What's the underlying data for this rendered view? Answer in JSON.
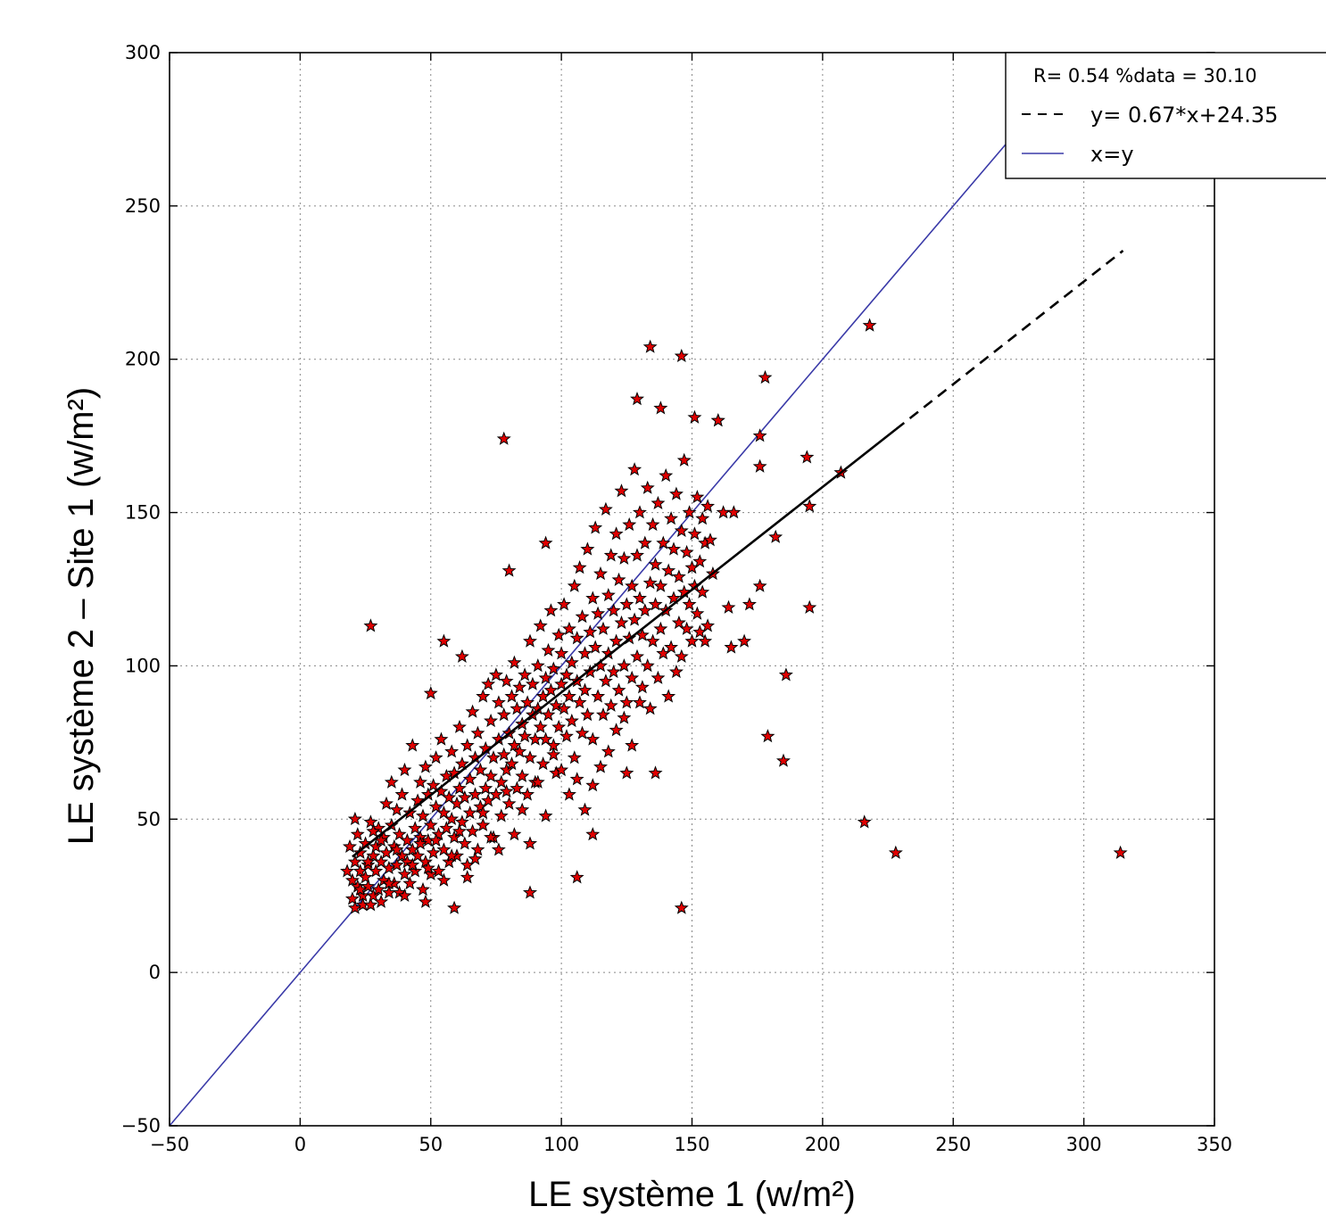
{
  "chart_data": {
    "type": "scatter",
    "xlabel": "LE système 1 (w/m²)",
    "ylabel": "LE système 2 – Site 1 (w/m²)",
    "xlim": [
      -50,
      350
    ],
    "ylim": [
      -50,
      300
    ],
    "xticks": [
      -50,
      0,
      50,
      100,
      150,
      200,
      250,
      300,
      350
    ],
    "yticks": [
      -50,
      0,
      50,
      100,
      150,
      200,
      250,
      300
    ],
    "grid": true,
    "legend": {
      "position": "top-right",
      "header": "R= 0.54  %data = 30.10",
      "entries": [
        {
          "label": "y= 0.67*x+24.35",
          "style": "dashed",
          "color": "#000000"
        },
        {
          "label": "x=y",
          "style": "solid",
          "color": "#3a3aa8"
        }
      ]
    },
    "regression": {
      "slope": 0.67,
      "intercept": 24.35,
      "x_range": [
        20,
        315
      ],
      "solid_until": 228,
      "color": "#000000"
    },
    "identity": {
      "x_range": [
        -50,
        270
      ],
      "color": "#3a3aa8"
    },
    "marker": {
      "shape": "star",
      "fill": "#e00000",
      "stroke": "#000000"
    },
    "points": [
      [
        20,
        30
      ],
      [
        20,
        24
      ],
      [
        21,
        21
      ],
      [
        21,
        36
      ],
      [
        22,
        45
      ],
      [
        22,
        28
      ],
      [
        23,
        33
      ],
      [
        23,
        39
      ],
      [
        24,
        25
      ],
      [
        24,
        22
      ],
      [
        25,
        31
      ],
      [
        25,
        42
      ],
      [
        26,
        35
      ],
      [
        26,
        28
      ],
      [
        27,
        22
      ],
      [
        27,
        49
      ],
      [
        28,
        38
      ],
      [
        28,
        25
      ],
      [
        29,
        33
      ],
      [
        29,
        41
      ],
      [
        30,
        27
      ],
      [
        30,
        47
      ],
      [
        31,
        36
      ],
      [
        31,
        23
      ],
      [
        32,
        30
      ],
      [
        32,
        44
      ],
      [
        33,
        39
      ],
      [
        33,
        55
      ],
      [
        34,
        26
      ],
      [
        34,
        34
      ],
      [
        35,
        48
      ],
      [
        35,
        62
      ],
      [
        36,
        29
      ],
      [
        36,
        41
      ],
      [
        37,
        35
      ],
      [
        37,
        53
      ],
      [
        38,
        26
      ],
      [
        38,
        45
      ],
      [
        39,
        38
      ],
      [
        39,
        58
      ],
      [
        40,
        32
      ],
      [
        40,
        66
      ],
      [
        41,
        43
      ],
      [
        41,
        36
      ],
      [
        42,
        29
      ],
      [
        42,
        52
      ],
      [
        43,
        40
      ],
      [
        43,
        74
      ],
      [
        44,
        33
      ],
      [
        44,
        47
      ],
      [
        45,
        56
      ],
      [
        45,
        38
      ],
      [
        46,
        44
      ],
      [
        46,
        62
      ],
      [
        47,
        27
      ],
      [
        47,
        51
      ],
      [
        48,
        36
      ],
      [
        48,
        67
      ],
      [
        49,
        43
      ],
      [
        49,
        58
      ],
      [
        50,
        32
      ],
      [
        50,
        48
      ],
      [
        51,
        61
      ],
      [
        51,
        39
      ],
      [
        52,
        54
      ],
      [
        52,
        70
      ],
      [
        53,
        45
      ],
      [
        53,
        33
      ],
      [
        54,
        59
      ],
      [
        54,
        76
      ],
      [
        55,
        40
      ],
      [
        55,
        52
      ],
      [
        56,
        64
      ],
      [
        56,
        47
      ],
      [
        57,
        36
      ],
      [
        57,
        57
      ],
      [
        58,
        72
      ],
      [
        58,
        50
      ],
      [
        59,
        44
      ],
      [
        59,
        65
      ],
      [
        60,
        55
      ],
      [
        60,
        38
      ],
      [
        61,
        80
      ],
      [
        61,
        60
      ],
      [
        62,
        49
      ],
      [
        62,
        68
      ],
      [
        63,
        42
      ],
      [
        63,
        57
      ],
      [
        64,
        74
      ],
      [
        64,
        35
      ],
      [
        65,
        63
      ],
      [
        65,
        52
      ],
      [
        66,
        85
      ],
      [
        66,
        46
      ],
      [
        67,
        70
      ],
      [
        67,
        58
      ],
      [
        68,
        40
      ],
      [
        68,
        78
      ],
      [
        69,
        54
      ],
      [
        69,
        66
      ],
      [
        70,
        90
      ],
      [
        70,
        48
      ],
      [
        71,
        60
      ],
      [
        71,
        73
      ],
      [
        72,
        56
      ],
      [
        72,
        94
      ],
      [
        73,
        64
      ],
      [
        73,
        82
      ],
      [
        74,
        44
      ],
      [
        74,
        70
      ],
      [
        75,
        97
      ],
      [
        75,
        58
      ],
      [
        76,
        76
      ],
      [
        76,
        88
      ],
      [
        77,
        62
      ],
      [
        77,
        51
      ],
      [
        78,
        84
      ],
      [
        78,
        71
      ],
      [
        79,
        95
      ],
      [
        79,
        66
      ],
      [
        80,
        78
      ],
      [
        80,
        55
      ],
      [
        81,
        90
      ],
      [
        81,
        68
      ],
      [
        82,
        101
      ],
      [
        82,
        74
      ],
      [
        83,
        60
      ],
      [
        83,
        86
      ],
      [
        84,
        93
      ],
      [
        84,
        72
      ],
      [
        85,
        81
      ],
      [
        85,
        64
      ],
      [
        86,
        97
      ],
      [
        86,
        77
      ],
      [
        87,
        88
      ],
      [
        87,
        58
      ],
      [
        88,
        108
      ],
      [
        88,
        70
      ],
      [
        89,
        84
      ],
      [
        89,
        94
      ],
      [
        90,
        76
      ],
      [
        90,
        62
      ],
      [
        91,
        100
      ],
      [
        91,
        86
      ],
      [
        92,
        80
      ],
      [
        92,
        113
      ],
      [
        93,
        68
      ],
      [
        93,
        90
      ],
      [
        94,
        96
      ],
      [
        94,
        76
      ],
      [
        95,
        105
      ],
      [
        95,
        84
      ],
      [
        96,
        92
      ],
      [
        96,
        118
      ],
      [
        97,
        74
      ],
      [
        97,
        99
      ],
      [
        98,
        87
      ],
      [
        98,
        65
      ],
      [
        99,
        110
      ],
      [
        99,
        80
      ],
      [
        100,
        94
      ],
      [
        100,
        104
      ],
      [
        101,
        86
      ],
      [
        101,
        120
      ],
      [
        102,
        77
      ],
      [
        102,
        97
      ],
      [
        103,
        112
      ],
      [
        103,
        90
      ],
      [
        104,
        82
      ],
      [
        104,
        101
      ],
      [
        105,
        126
      ],
      [
        105,
        70
      ],
      [
        106,
        95
      ],
      [
        106,
        109
      ],
      [
        107,
        88
      ],
      [
        107,
        132
      ],
      [
        108,
        78
      ],
      [
        108,
        116
      ],
      [
        109,
        104
      ],
      [
        109,
        92
      ],
      [
        110,
        138
      ],
      [
        110,
        84
      ],
      [
        111,
        111
      ],
      [
        111,
        98
      ],
      [
        112,
        122
      ],
      [
        112,
        76
      ],
      [
        113,
        106
      ],
      [
        113,
        145
      ],
      [
        114,
        90
      ],
      [
        114,
        117
      ],
      [
        115,
        100
      ],
      [
        115,
        130
      ],
      [
        116,
        84
      ],
      [
        116,
        112
      ],
      [
        117,
        151
      ],
      [
        117,
        95
      ],
      [
        118,
        123
      ],
      [
        118,
        104
      ],
      [
        119,
        136
      ],
      [
        119,
        87
      ],
      [
        120,
        118
      ],
      [
        120,
        98
      ],
      [
        121,
        143
      ],
      [
        121,
        108
      ],
      [
        122,
        92
      ],
      [
        122,
        128
      ],
      [
        123,
        157
      ],
      [
        123,
        114
      ],
      [
        124,
        100
      ],
      [
        124,
        135
      ],
      [
        125,
        120
      ],
      [
        125,
        88
      ],
      [
        126,
        146
      ],
      [
        126,
        109
      ],
      [
        127,
        126
      ],
      [
        127,
        96
      ],
      [
        128,
        164
      ],
      [
        128,
        115
      ],
      [
        129,
        136
      ],
      [
        129,
        103
      ],
      [
        130,
        122
      ],
      [
        130,
        150
      ],
      [
        131,
        93
      ],
      [
        131,
        110
      ],
      [
        132,
        140
      ],
      [
        132,
        118
      ],
      [
        133,
        158
      ],
      [
        133,
        100
      ],
      [
        134,
        127
      ],
      [
        134,
        86
      ],
      [
        135,
        146
      ],
      [
        135,
        108
      ],
      [
        136,
        120
      ],
      [
        136,
        133
      ],
      [
        137,
        96
      ],
      [
        137,
        153
      ],
      [
        138,
        112
      ],
      [
        138,
        126
      ],
      [
        139,
        140
      ],
      [
        139,
        104
      ],
      [
        140,
        162
      ],
      [
        140,
        118
      ],
      [
        141,
        90
      ],
      [
        141,
        131
      ],
      [
        142,
        148
      ],
      [
        142,
        106
      ],
      [
        143,
        122
      ],
      [
        143,
        138
      ],
      [
        144,
        98
      ],
      [
        144,
        156
      ],
      [
        145,
        114
      ],
      [
        145,
        129
      ],
      [
        146,
        144
      ],
      [
        146,
        103
      ],
      [
        147,
        124
      ],
      [
        147,
        167
      ],
      [
        148,
        112
      ],
      [
        148,
        137
      ],
      [
        149,
        150
      ],
      [
        149,
        120
      ],
      [
        150,
        132
      ],
      [
        150,
        108
      ],
      [
        151,
        143
      ],
      [
        151,
        126
      ],
      [
        152,
        117
      ],
      [
        152,
        155
      ],
      [
        153,
        134
      ],
      [
        153,
        111
      ],
      [
        154,
        148
      ],
      [
        154,
        124
      ],
      [
        155,
        140
      ],
      [
        155,
        108
      ],
      [
        156,
        152
      ],
      [
        156,
        113
      ],
      [
        157,
        141
      ],
      [
        158,
        130
      ],
      [
        160,
        180
      ],
      [
        162,
        150
      ],
      [
        164,
        119
      ],
      [
        165,
        106
      ],
      [
        18,
        33
      ],
      [
        19,
        41
      ],
      [
        21,
        50
      ],
      [
        23,
        27
      ],
      [
        26,
        36
      ],
      [
        28,
        46
      ],
      [
        31,
        43
      ],
      [
        34,
        29
      ],
      [
        37,
        40
      ],
      [
        40,
        25
      ],
      [
        43,
        35
      ],
      [
        46,
        42
      ],
      [
        49,
        34
      ],
      [
        52,
        43
      ],
      [
        55,
        30
      ],
      [
        58,
        38
      ],
      [
        61,
        46
      ],
      [
        64,
        31
      ],
      [
        67,
        37
      ],
      [
        70,
        52
      ],
      [
        73,
        44
      ],
      [
        76,
        40
      ],
      [
        79,
        59
      ],
      [
        82,
        45
      ],
      [
        85,
        53
      ],
      [
        88,
        42
      ],
      [
        91,
        62
      ],
      [
        94,
        51
      ],
      [
        97,
        71
      ],
      [
        100,
        66
      ],
      [
        103,
        58
      ],
      [
        106,
        63
      ],
      [
        109,
        53
      ],
      [
        112,
        61
      ],
      [
        115,
        67
      ],
      [
        118,
        72
      ],
      [
        121,
        79
      ],
      [
        124,
        83
      ],
      [
        127,
        74
      ],
      [
        130,
        88
      ],
      [
        27,
        113
      ],
      [
        50,
        91
      ],
      [
        55,
        108
      ],
      [
        62,
        103
      ],
      [
        78,
        174
      ],
      [
        80,
        131
      ],
      [
        94,
        140
      ],
      [
        129,
        187
      ],
      [
        134,
        204
      ],
      [
        138,
        184
      ],
      [
        146,
        201
      ],
      [
        151,
        181
      ],
      [
        160,
        180
      ],
      [
        166,
        150
      ],
      [
        170,
        108
      ],
      [
        172,
        120
      ],
      [
        176,
        175
      ],
      [
        176,
        165
      ],
      [
        176,
        126
      ],
      [
        178,
        194
      ],
      [
        179,
        77
      ],
      [
        182,
        142
      ],
      [
        185,
        69
      ],
      [
        186,
        97
      ],
      [
        194,
        168
      ],
      [
        195,
        152
      ],
      [
        195,
        119
      ],
      [
        207,
        163
      ],
      [
        216,
        49
      ],
      [
        218,
        211
      ],
      [
        228,
        39
      ],
      [
        314,
        39
      ],
      [
        146,
        21
      ],
      [
        106,
        31
      ],
      [
        112,
        45
      ],
      [
        136,
        65
      ],
      [
        125,
        65
      ],
      [
        59,
        21
      ],
      [
        88,
        26
      ],
      [
        48,
        23
      ]
    ]
  }
}
